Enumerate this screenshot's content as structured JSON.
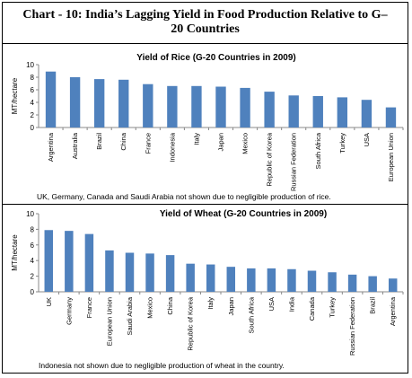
{
  "header": {
    "title": "Chart - 10: India’s Lagging Yield in Food Production Relative to G–20 Countries"
  },
  "chart_data": [
    {
      "type": "bar",
      "title": "Yield of Rice (G-20 Countries in 2009)",
      "ylabel": "MT/hectare",
      "xlabel": "",
      "ylim": [
        0,
        10
      ],
      "yticks": [
        0,
        2,
        4,
        6,
        8,
        10
      ],
      "bar_color": "#4f81bd",
      "categories": [
        "Argentina",
        "Australia",
        "Brazil",
        "China",
        "France",
        "Indonesia",
        "Italy",
        "Japan",
        "Mexico",
        "Republic of Korea",
        "Russian Federation",
        "South Africa",
        "Turkey",
        "USA",
        "European Union"
      ],
      "values": [
        8.9,
        8.0,
        7.7,
        7.6,
        6.9,
        6.6,
        6.6,
        6.5,
        6.3,
        5.7,
        5.1,
        5.0,
        4.8,
        4.4,
        3.2
      ],
      "note": "UK, Germany, Canada and Saudi Arabia not shown due to negligible production of rice."
    },
    {
      "type": "bar",
      "title": "Yield of Wheat (G-20 Countries in 2009)",
      "ylabel": "MT/hectare",
      "xlabel": "",
      "ylim": [
        0,
        10
      ],
      "yticks": [
        0,
        2,
        4,
        6,
        8,
        10
      ],
      "bar_color": "#4f81bd",
      "categories": [
        "UK",
        "Germany",
        "France",
        "European Union",
        "Saudi Arabia",
        "Mexico",
        "China",
        "Republic of Korea",
        "Italy",
        "Japan",
        "South Africa",
        "USA",
        "India",
        "Canada",
        "Turkey",
        "Russian Federation",
        "Brazil",
        "Argentina"
      ],
      "values": [
        7.9,
        7.8,
        7.4,
        5.3,
        5.0,
        4.9,
        4.7,
        3.6,
        3.5,
        3.2,
        3.0,
        3.0,
        2.9,
        2.7,
        2.5,
        2.2,
        2.0,
        1.7
      ],
      "note": "Indonesia  not shown  due to negligible production of wheat in the country."
    }
  ]
}
